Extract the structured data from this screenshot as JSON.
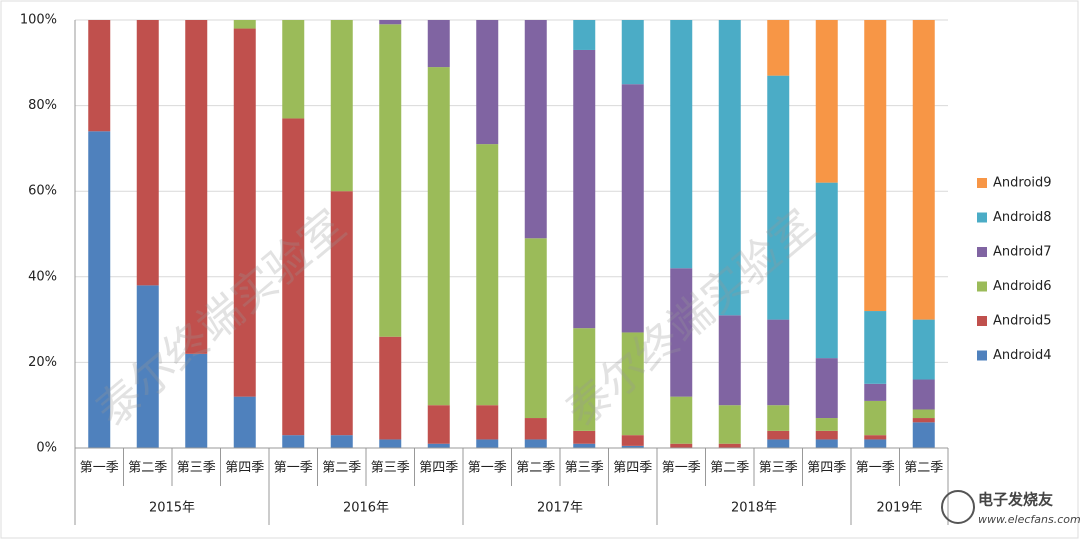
{
  "chart_data": {
    "type": "stacked-bar-100",
    "groups": [
      {
        "name": "2015年",
        "categories": [
          "第一季",
          "第二季",
          "第三季",
          "第四季"
        ]
      },
      {
        "name": "2016年",
        "categories": [
          "第一季",
          "第二季",
          "第三季",
          "第四季"
        ]
      },
      {
        "name": "2017年",
        "categories": [
          "第一季",
          "第二季",
          "第三季",
          "第四季"
        ]
      },
      {
        "name": "2018年",
        "categories": [
          "第一季",
          "第二季",
          "第三季",
          "第四季"
        ]
      },
      {
        "name": "2019年",
        "categories": [
          "第一季",
          "第二季"
        ]
      }
    ],
    "series": [
      {
        "name": "Android4",
        "color": "#4f81bd",
        "values": [
          74,
          38,
          22,
          12,
          3,
          3,
          2,
          1,
          2,
          2,
          1,
          0.5,
          0,
          0,
          2,
          2,
          2,
          6
        ]
      },
      {
        "name": "Android5",
        "color": "#c0504d",
        "values": [
          26,
          62,
          78,
          86,
          74,
          57,
          24,
          9,
          8,
          5,
          3,
          2.5,
          1,
          1,
          2,
          2,
          1,
          1
        ]
      },
      {
        "name": "Android6",
        "color": "#9bbb59",
        "values": [
          0,
          0,
          0,
          2,
          23,
          40,
          73,
          79,
          61,
          42,
          24,
          24,
          11,
          9,
          6,
          3,
          8,
          2
        ]
      },
      {
        "name": "Android7",
        "color": "#8064a2",
        "values": [
          0,
          0,
          0,
          0,
          0,
          0,
          1,
          11,
          29,
          51,
          65,
          58,
          30,
          21,
          20,
          14,
          4,
          7
        ]
      },
      {
        "name": "Android8",
        "color": "#4bacc6",
        "values": [
          0,
          0,
          0,
          0,
          0,
          0,
          0,
          0,
          0,
          0,
          7,
          15,
          58,
          69,
          57,
          41,
          17,
          14
        ]
      },
      {
        "name": "Android9",
        "color": "#f79646",
        "values": [
          0,
          0,
          0,
          0,
          0,
          0,
          0,
          0,
          0,
          0,
          0,
          0,
          0,
          0,
          13,
          38,
          68,
          70
        ]
      }
    ],
    "ylim": [
      0,
      100
    ],
    "yticks": [
      {
        "value": 0,
        "label": "0%"
      },
      {
        "value": 20,
        "label": "20%"
      },
      {
        "value": 40,
        "label": "40%"
      },
      {
        "value": 60,
        "label": "60%"
      },
      {
        "value": 80,
        "label": "80%"
      },
      {
        "value": 100,
        "label": "100%"
      }
    ],
    "grid": true,
    "legend": "right",
    "watermarks": [
      "泰尔终端实验室",
      "泰尔终端实验室"
    ],
    "logo": [
      "电子发烧友",
      "www.elecfans.com"
    ]
  }
}
